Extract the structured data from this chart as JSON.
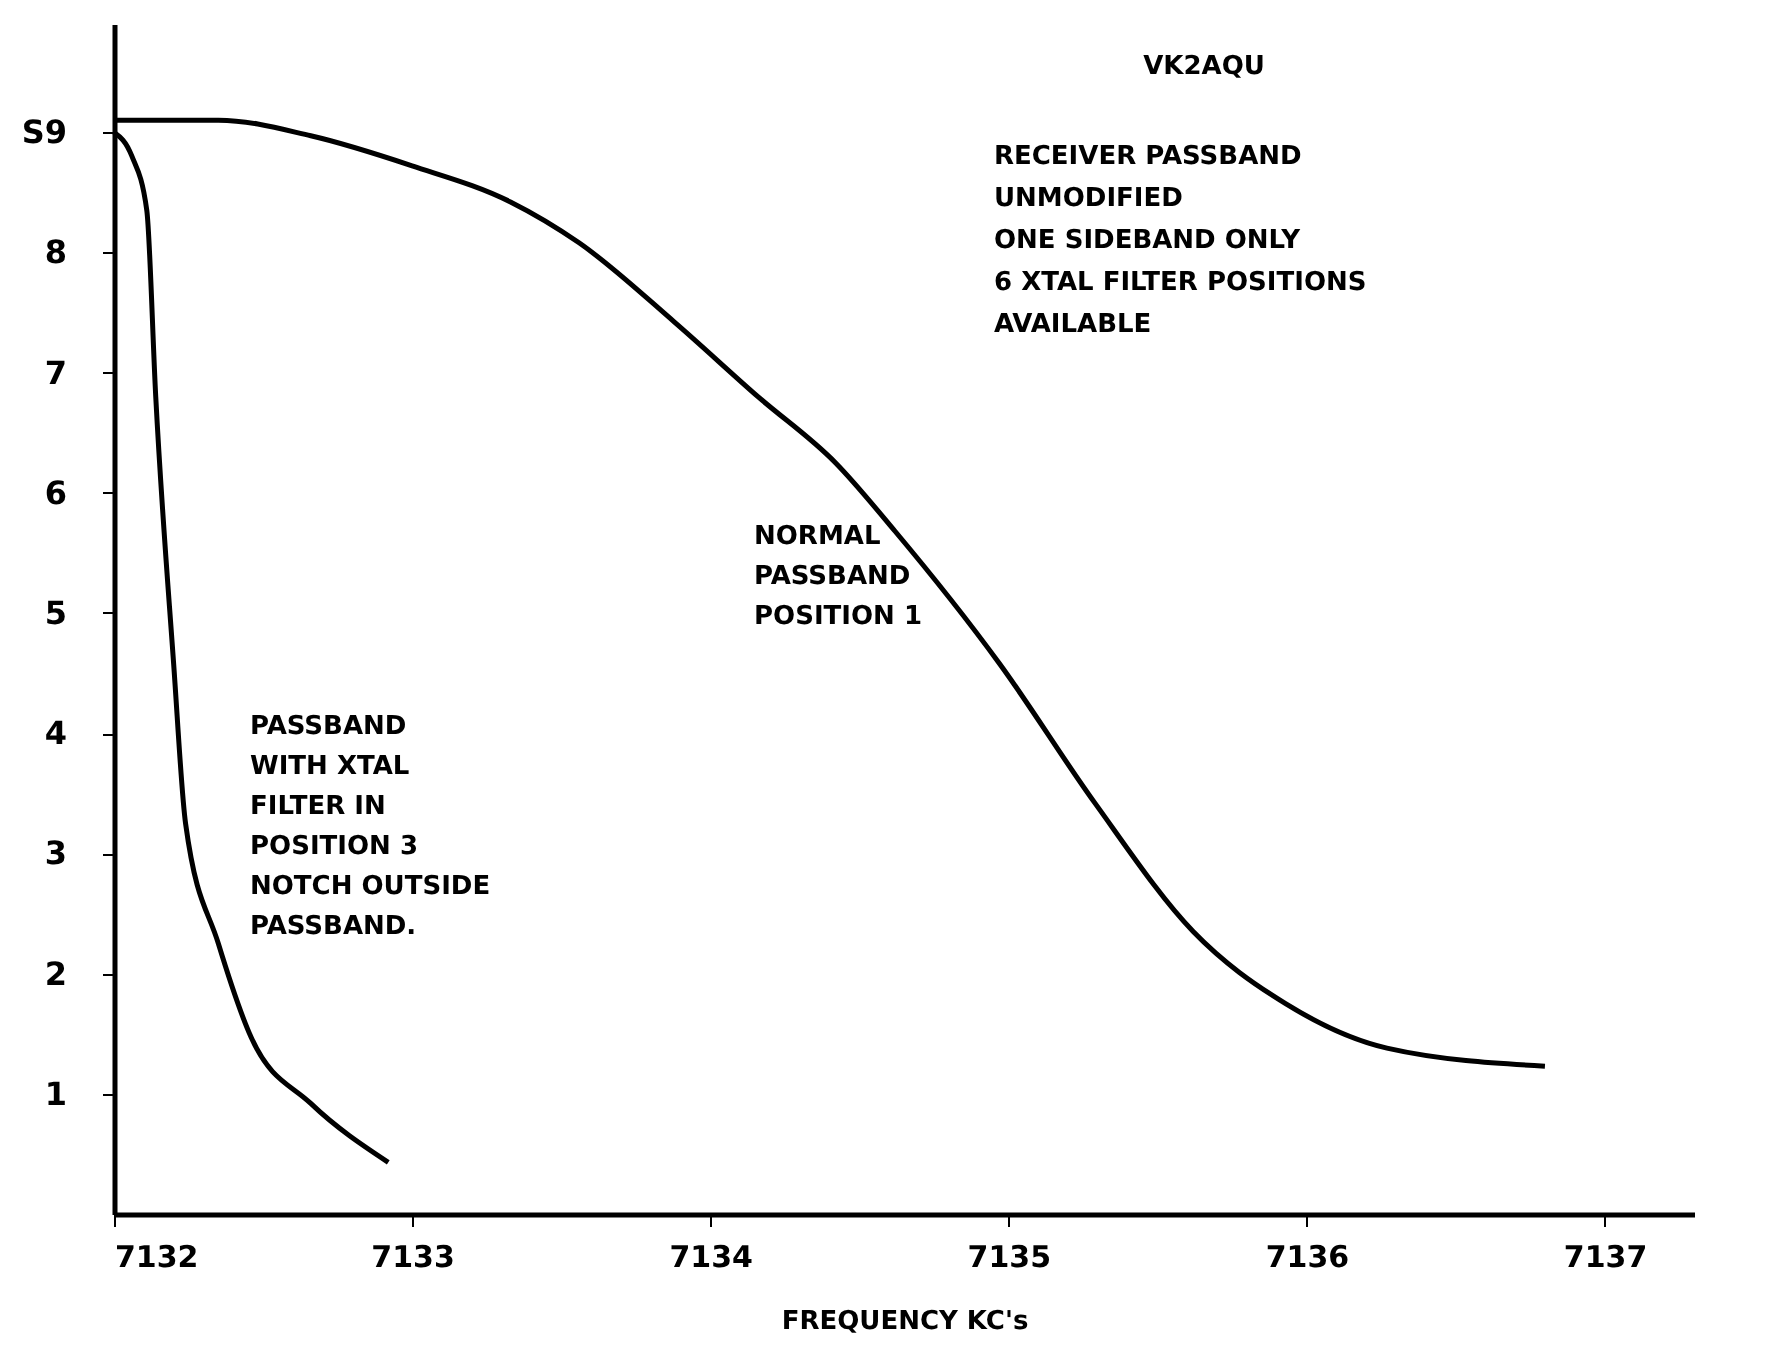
{
  "chart_data": {
    "type": "line",
    "xlabel": "FREQUENCY   KC's",
    "xlim": [
      7132,
      7137.3
    ],
    "xticks": [
      7132,
      7133,
      7134,
      7135,
      7136,
      7137
    ],
    "ylim": [
      0,
      9.9
    ],
    "yticks": [
      1,
      2,
      3,
      4,
      5,
      6,
      7,
      8,
      {
        "value": 9,
        "label": "S9"
      }
    ],
    "grid": false,
    "marker": "none",
    "line_style": "solid",
    "series": [
      {
        "name": "NORMAL\nPASSBAND\nPOSITION 1",
        "color": "#000000",
        "x": [
          7132.0,
          7132.35,
          7132.66,
          7133.0,
          7133.33,
          7133.56,
          7133.88,
          7134.16,
          7134.42,
          7134.62,
          7134.97,
          7135.29,
          7135.62,
          7135.93,
          7136.27,
          7136.8
        ],
        "values": [
          9.1,
          9.1,
          8.97,
          8.72,
          8.42,
          8.08,
          7.42,
          6.8,
          6.25,
          5.68,
          4.58,
          3.42,
          2.35,
          1.75,
          1.38,
          1.23
        ]
      },
      {
        "name": "PASSBAND\nWITH XTAL\nFILTER IN\nPOSITION 3\nNOTCH OUTSIDE\nPASSBAND.",
        "color": "#000000",
        "x": [
          7132.0,
          7132.06,
          7132.11,
          7132.14,
          7132.2,
          7132.24,
          7132.35,
          7132.46,
          7132.66,
          7132.92
        ],
        "values": [
          9.0,
          8.8,
          8.35,
          6.8,
          4.58,
          3.25,
          2.25,
          1.47,
          0.92,
          0.43
        ]
      }
    ],
    "annotations": [
      "VK2AQU",
      "RECEIVER PASSBAND\nUNMODIFIED\nONE SIDEBAND ONLY\n6 XTAL FILTER POSITIONS\nAVAILABLE"
    ]
  }
}
